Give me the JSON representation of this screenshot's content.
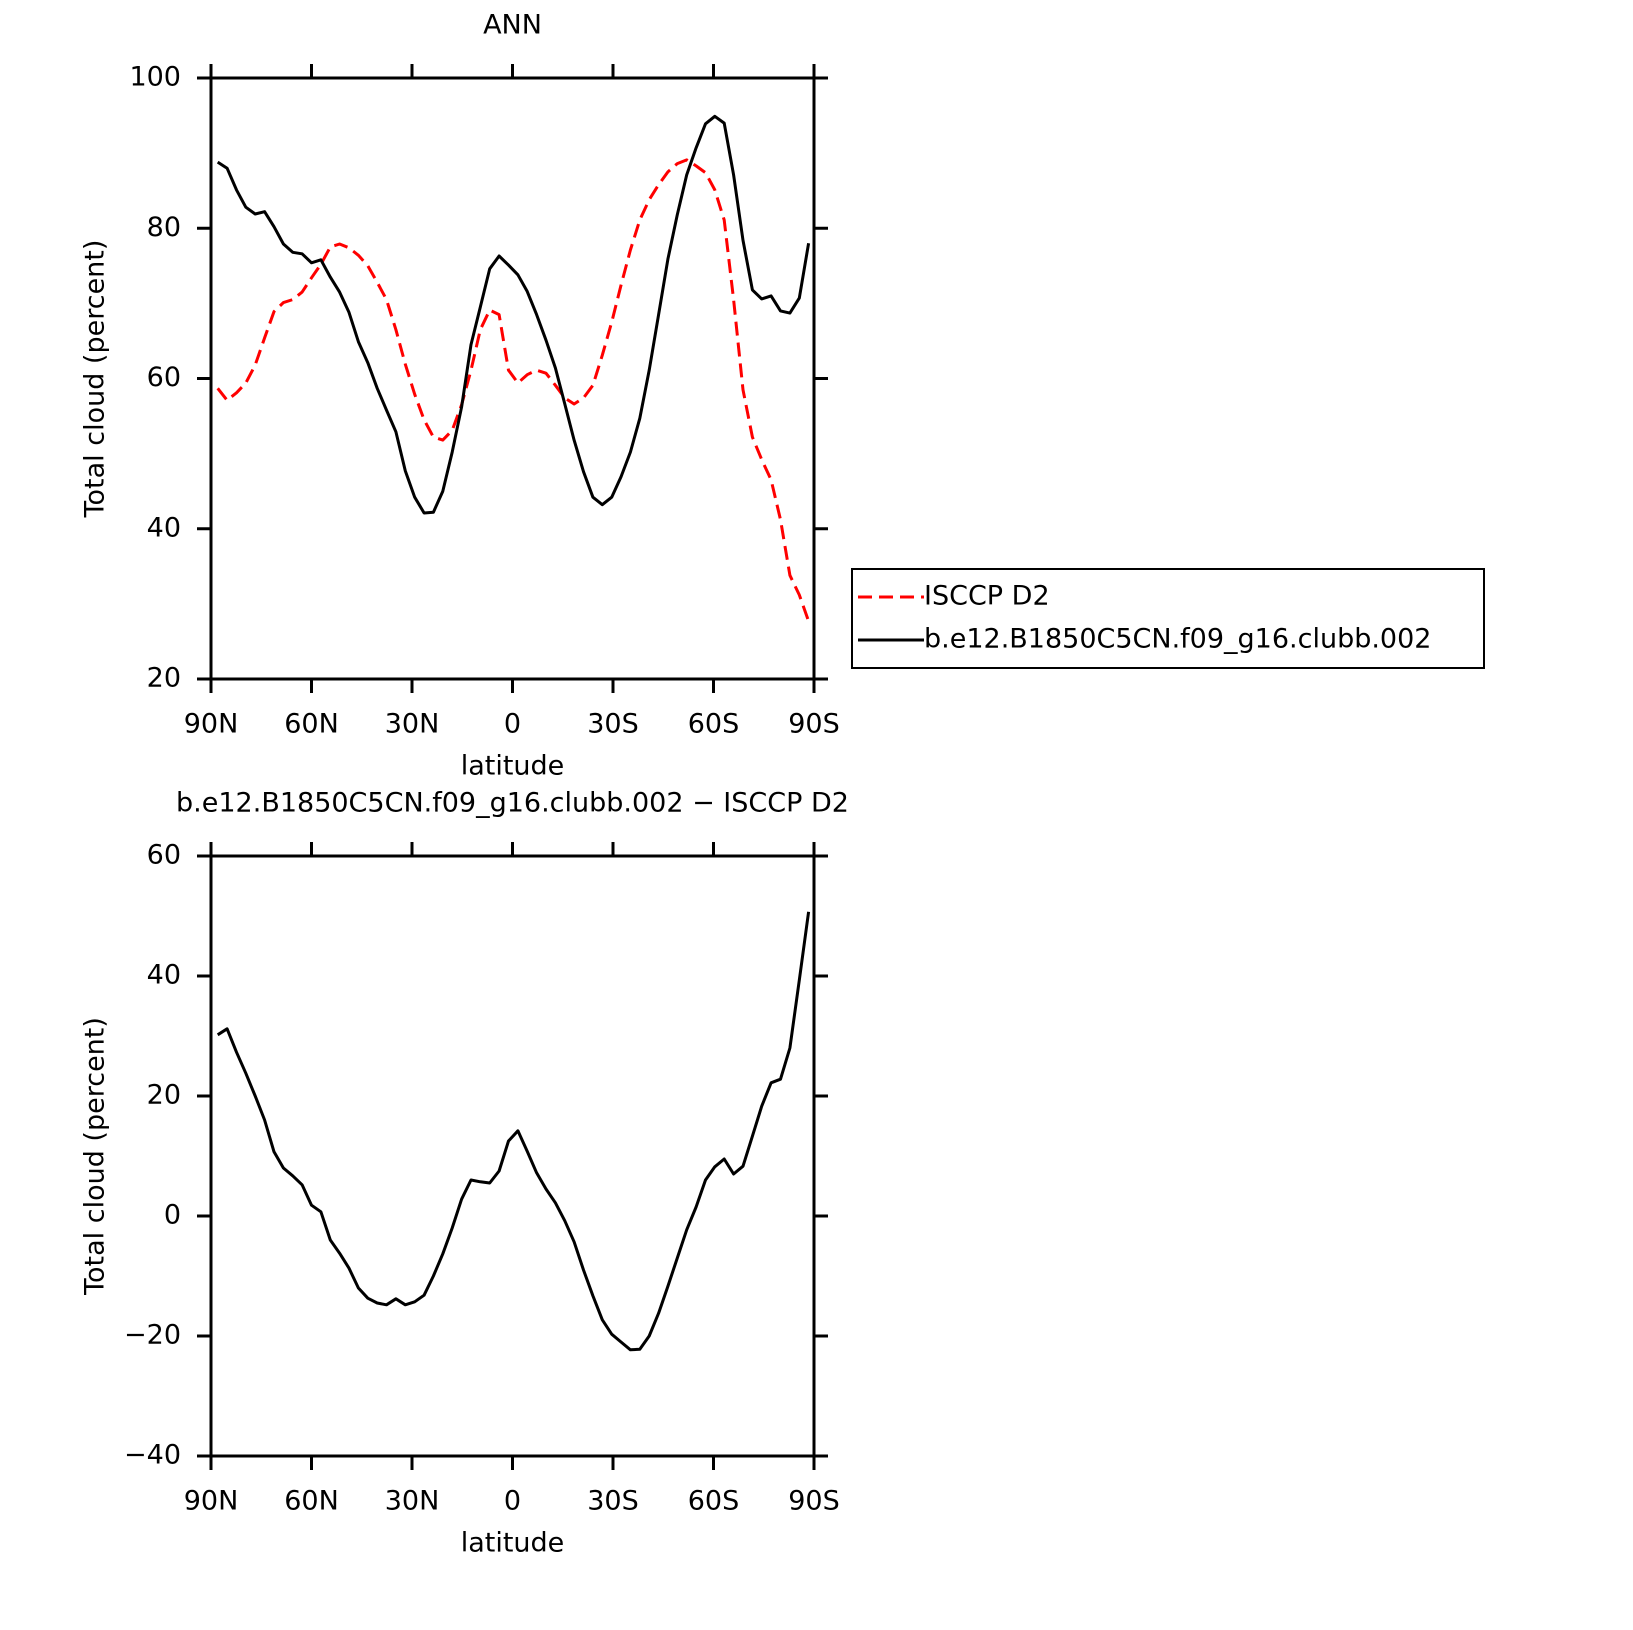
{
  "chart_data": [
    {
      "type": "line",
      "title": "ANN",
      "xlabel": "latitude",
      "ylabel": "Total cloud (percent)",
      "x": [
        88,
        85.2,
        82.4,
        79.6,
        76.8,
        74,
        71.2,
        68.4,
        65.6,
        62.8,
        60,
        57.2,
        54.4,
        51.6,
        48.8,
        46,
        43.2,
        40.4,
        37.6,
        34.8,
        32,
        29.2,
        26.4,
        23.6,
        20.8,
        18,
        15.2,
        12.4,
        9.6,
        6.8,
        4,
        1.2,
        -1.6,
        -4.4,
        -7.2,
        -10,
        -12.8,
        -15.6,
        -18.4,
        -21.2,
        -24,
        -26.8,
        -29.6,
        -32.4,
        -35.2,
        -38,
        -40.8,
        -43.6,
        -46.4,
        -49.2,
        -52,
        -54.8,
        -57.6,
        -60.4,
        -63.2,
        -66,
        -68.8,
        -71.6,
        -74.4,
        -77.2,
        -80,
        -82.8,
        -85.6,
        -88.4
      ],
      "series": [
        {
          "name": "ISCCP D2",
          "color": "#ff0000",
          "style": "dashed",
          "values": [
            58.7,
            57.1,
            58.1,
            59.4,
            61.8,
            65.4,
            68.9,
            70.1,
            70.5,
            71.5,
            73.4,
            75.2,
            77.5,
            77.9,
            77.4,
            76.4,
            75.0,
            72.8,
            70.5,
            66.5,
            61.9,
            57.9,
            54.5,
            52.2,
            51.8,
            53.1,
            56.5,
            61.1,
            66.5,
            69.1,
            68.5,
            61.1,
            59.4,
            60.5,
            61.1,
            60.7,
            59.1,
            57.4,
            56.6,
            57.4,
            59.1,
            63.1,
            67.5,
            72.4,
            77.1,
            81.1,
            83.8,
            85.8,
            87.5,
            88.6,
            89.1,
            88.3,
            87.4,
            85.1,
            81.1,
            70.5,
            58.5,
            52.2,
            49.2,
            46.5,
            41.2,
            33.8,
            31.2,
            27.7
          ]
        },
        {
          "name": "b.e12.B1850C5CN.f09_g16.clubb.002",
          "color": "#000000",
          "style": "solid",
          "values": [
            88.8,
            88.0,
            85.1,
            82.8,
            81.9,
            82.2,
            80.2,
            77.9,
            76.8,
            76.6,
            75.4,
            75.8,
            73.5,
            71.5,
            68.8,
            64.9,
            62.1,
            58.7,
            55.8,
            52.9,
            47.7,
            44.2,
            42.1,
            42.2,
            45.0,
            50.2,
            56.2,
            64.5,
            69.5,
            74.6,
            76.3,
            75.1,
            73.8,
            71.6,
            68.5,
            65.1,
            61.4,
            56.6,
            51.8,
            47.6,
            44.2,
            43.2,
            44.2,
            46.9,
            50.2,
            54.7,
            61.1,
            68.5,
            75.9,
            81.8,
            87.1,
            90.7,
            93.9,
            94.9,
            94.0,
            87.1,
            78.4,
            71.8,
            70.6,
            71.0,
            69.0,
            68.7,
            70.7,
            78.0
          ]
        }
      ],
      "xlim": [
        90,
        -90
      ],
      "xticks": [
        {
          "value": 90,
          "label": "90N"
        },
        {
          "value": 60,
          "label": "60N"
        },
        {
          "value": 30,
          "label": "30N"
        },
        0,
        {
          "value": -30,
          "label": "30S"
        },
        {
          "value": -60,
          "label": "60S"
        },
        {
          "value": -90,
          "label": "90S"
        }
      ],
      "ylim": [
        20,
        100
      ],
      "yticks": [
        20,
        40,
        60,
        80,
        100
      ]
    },
    {
      "type": "line",
      "title": "b.e12.B1850C5CN.f09_g16.clubb.002 − ISCCP D2",
      "xlabel": "latitude",
      "ylabel": "Total cloud (percent)",
      "x": [
        88,
        85.2,
        82.4,
        79.6,
        76.8,
        74,
        71.2,
        68.4,
        65.6,
        62.8,
        60,
        57.2,
        54.4,
        51.6,
        48.8,
        46,
        43.2,
        40.4,
        37.6,
        34.8,
        32,
        29.2,
        26.4,
        23.6,
        20.8,
        18,
        15.2,
        12.4,
        9.6,
        6.8,
        4,
        1.2,
        -1.6,
        -4.4,
        -7.2,
        -10,
        -12.8,
        -15.6,
        -18.4,
        -21.2,
        -24,
        -26.8,
        -29.6,
        -32.4,
        -35.2,
        -38,
        -40.8,
        -43.6,
        -46.4,
        -49.2,
        -52,
        -54.8,
        -57.6,
        -60.4,
        -63.2,
        -66,
        -68.8,
        -71.6,
        -74.4,
        -77.2,
        -80,
        -82.8,
        -85.6,
        -88.4
      ],
      "color": "#000000",
      "style": "solid",
      "values": [
        30.2,
        31.2,
        27.3,
        23.8,
        20.0,
        16.0,
        10.7,
        8.0,
        6.7,
        5.2,
        1.8,
        0.7,
        -4.0,
        -6.2,
        -8.7,
        -12.0,
        -13.7,
        -14.5,
        -14.8,
        -13.8,
        -14.8,
        -14.3,
        -13.2,
        -10.0,
        -6.3,
        -2.0,
        2.8,
        6.0,
        5.7,
        5.5,
        7.5,
        12.5,
        14.2,
        10.8,
        7.2,
        4.5,
        2.2,
        -0.8,
        -4.3,
        -9.0,
        -13.3,
        -17.3,
        -19.7,
        -21.0,
        -22.3,
        -22.2,
        -20.0,
        -16.2,
        -11.7,
        -7.0,
        -2.3,
        1.5,
        6.0,
        8.2,
        9.5,
        7.0,
        8.3,
        13.3,
        18.3,
        22.2,
        22.8,
        28.0,
        39.3,
        50.7
      ],
      "xlim": [
        90,
        -90
      ],
      "xticks": [
        {
          "value": 90,
          "label": "90N"
        },
        {
          "value": 60,
          "label": "60N"
        },
        {
          "value": 30,
          "label": "30N"
        },
        0,
        {
          "value": -30,
          "label": "30S"
        },
        {
          "value": -60,
          "label": "60S"
        },
        {
          "value": -90,
          "label": "90S"
        }
      ],
      "ylim": [
        -40,
        60
      ],
      "yticks": [
        {
          "value": -40,
          "label": "−40"
        },
        {
          "value": -20,
          "label": "−20"
        },
        0,
        20,
        40,
        60
      ]
    }
  ]
}
